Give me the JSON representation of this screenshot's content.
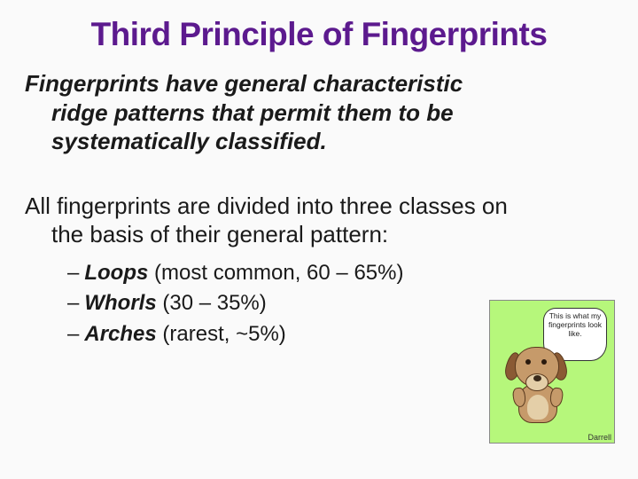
{
  "title": "Third Principle of Fingerprints",
  "lead_line1": "Fingerprints have general characteristic",
  "lead_line2": "ridge patterns that permit them to be",
  "lead_line3": "systematically classified.",
  "body_line1": "All fingerprints are divided into three classes on",
  "body_line2": "the basis of their general pattern:",
  "items": [
    {
      "label": "Loops",
      "rest": " (most common, 60 – 65%)"
    },
    {
      "label": "Whorls",
      "rest": " (30 – 35%)"
    },
    {
      "label": "Arches",
      "rest": " (rarest, ~5%)"
    }
  ],
  "cartoon": {
    "bubble_text": "This is what my fingerprints look like.",
    "caption": "Darrell",
    "bg_color": "#b6f77b"
  }
}
